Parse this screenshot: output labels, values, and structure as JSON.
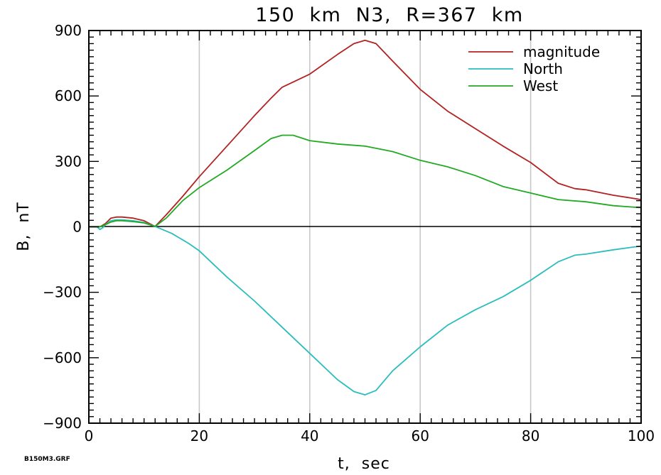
{
  "chart_data": {
    "type": "line",
    "title": "150  km  N3,  R=367  km",
    "xlabel": "t,  sec",
    "ylabel": "B,  nT",
    "footnote": "B150M3.GRF",
    "xlim": [
      0,
      100
    ],
    "ylim": [
      -900,
      900
    ],
    "x_ticks": [
      0,
      20,
      40,
      60,
      80,
      100
    ],
    "y_ticks": [
      -900,
      -600,
      -300,
      0,
      300,
      600,
      900
    ],
    "x_tick_labels": [
      "0",
      "20",
      "40",
      "60",
      "80",
      "100"
    ],
    "y_tick_labels": [
      "−900",
      "−600",
      "−300",
      "0",
      "300",
      "600",
      "900"
    ],
    "grid": true,
    "legend_position": "top-right",
    "series": [
      {
        "name": "magnitude",
        "color": "#b22222",
        "x": [
          0,
          2,
          3,
          4,
          5,
          6,
          8,
          10,
          12,
          14,
          17,
          20,
          25,
          30,
          33,
          35,
          40,
          45,
          48,
          50,
          52,
          55,
          60,
          65,
          70,
          75,
          80,
          85,
          88,
          90,
          95,
          100
        ],
        "y": [
          0,
          0,
          15,
          40,
          45,
          45,
          40,
          28,
          2,
          55,
          140,
          230,
          370,
          510,
          590,
          640,
          700,
          790,
          840,
          855,
          840,
          760,
          630,
          530,
          450,
          370,
          295,
          200,
          175,
          170,
          145,
          125
        ]
      },
      {
        "name": "North",
        "color": "#2bbdbd",
        "x": [
          0,
          1.5,
          2,
          2.5,
          3,
          4,
          5,
          6,
          8,
          10,
          12,
          15,
          18,
          20,
          25,
          30,
          35,
          40,
          45,
          48,
          50,
          52,
          55,
          60,
          65,
          70,
          75,
          80,
          85,
          88,
          90,
          95,
          100
        ],
        "y": [
          0,
          0,
          -12,
          -5,
          10,
          28,
          32,
          32,
          28,
          20,
          2,
          -30,
          -75,
          -110,
          -230,
          -340,
          -460,
          -580,
          -700,
          -755,
          -770,
          -750,
          -660,
          -550,
          -450,
          -380,
          -320,
          -245,
          -160,
          -130,
          -125,
          -105,
          -88
        ]
      },
      {
        "name": "West",
        "color": "#22aa22",
        "x": [
          0,
          2,
          3,
          4,
          5,
          6,
          8,
          10,
          12,
          14,
          17,
          20,
          25,
          30,
          33,
          35,
          37,
          40,
          45,
          50,
          55,
          60,
          65,
          70,
          75,
          80,
          85,
          90,
          95,
          100
        ],
        "y": [
          0,
          0,
          10,
          22,
          28,
          28,
          24,
          18,
          2,
          40,
          120,
          180,
          260,
          350,
          405,
          420,
          420,
          395,
          380,
          370,
          345,
          305,
          275,
          235,
          185,
          155,
          125,
          115,
          97,
          88
        ]
      }
    ]
  }
}
